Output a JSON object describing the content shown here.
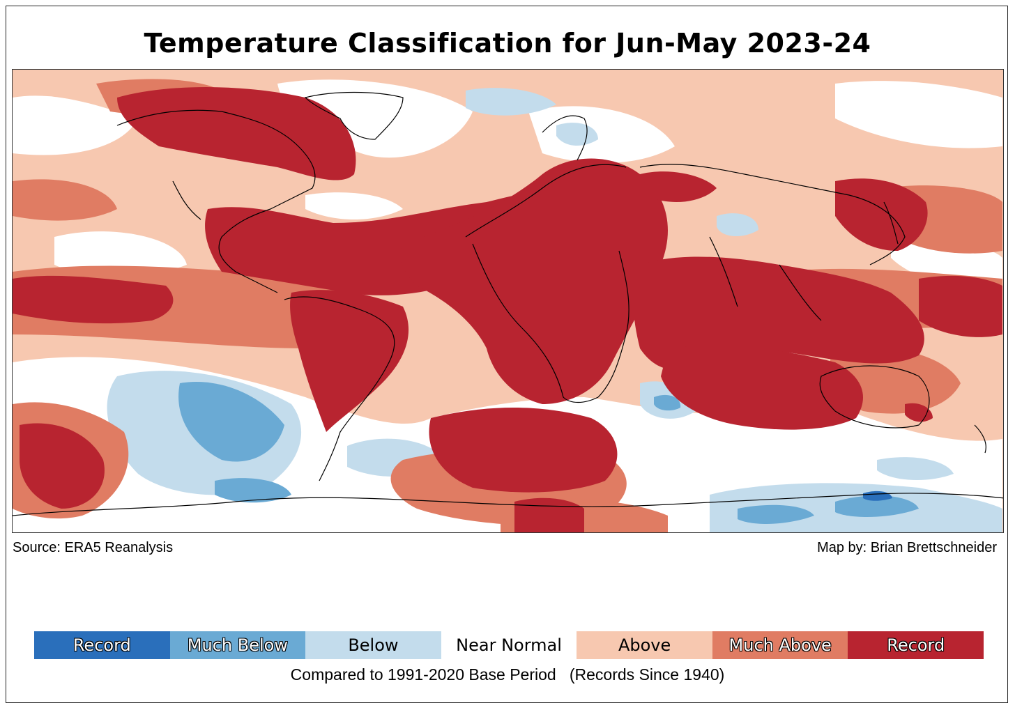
{
  "title": "Temperature Classification for Jun-May 2023-24",
  "source": "Source: ERA5 Reanalysis",
  "credit": "Map by: Brian Brettschneider",
  "footnote": "Compared to 1991-2020 Base Period   (Records Since 1940)",
  "colors": {
    "record_below": "#2a6fbb",
    "much_below": "#6aaad4",
    "below": "#c3dcec",
    "near_normal": "#ffffff",
    "above": "#f7c8b0",
    "much_above": "#e07c63",
    "record_above": "#b82430"
  },
  "legend": [
    {
      "label": "Record",
      "color": "#2a6fbb",
      "style": "dark"
    },
    {
      "label": "Much Below",
      "color": "#6aaad4",
      "style": "dark"
    },
    {
      "label": "Below",
      "color": "#c3dcec",
      "style": "light"
    },
    {
      "label": "Near Normal",
      "color": "#ffffff",
      "style": "light"
    },
    {
      "label": "Above",
      "color": "#f7c8b0",
      "style": "light"
    },
    {
      "label": "Much Above",
      "color": "#e07c63",
      "style": "dark"
    },
    {
      "label": "Record",
      "color": "#b82430",
      "style": "dark"
    }
  ]
}
